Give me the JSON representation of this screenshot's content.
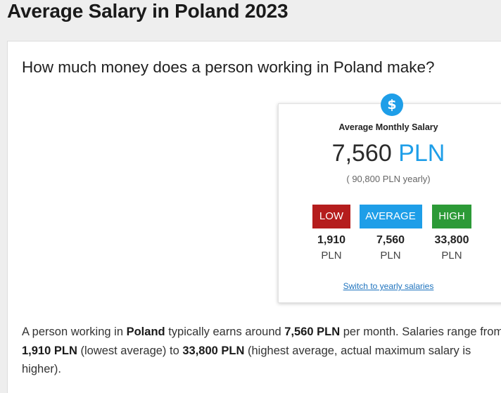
{
  "page": {
    "title": "Average Salary in Poland 2023"
  },
  "question": "How much money does a person working in Poland make?",
  "salary_box": {
    "icon": "dollar-icon",
    "icon_glyph": "$",
    "label": "Average Monthly Salary",
    "monthly_amount": "7,560",
    "currency": "PLN",
    "yearly_note": "( 90,800 PLN yearly)",
    "levels": [
      {
        "tag": "LOW",
        "amount": "1,910",
        "unit": "PLN",
        "color": "#b51d1d"
      },
      {
        "tag": "AVERAGE",
        "amount": "7,560",
        "unit": "PLN",
        "color": "#1e9ee8"
      },
      {
        "tag": "HIGH",
        "amount": "33,800",
        "unit": "PLN",
        "color": "#2c9a37"
      }
    ],
    "switch_link": "Switch to yearly salaries"
  },
  "summary": {
    "t1": "A person working in ",
    "b1": "Poland",
    "t2": " typically earns around ",
    "b2": "7,560 PLN",
    "t3": " per month. Salaries range from ",
    "b3": "1,910 PLN",
    "t4": " (lowest average) to ",
    "b4": "33,800 PLN",
    "t5": " (highest average, actual maximum salary is higher)."
  }
}
